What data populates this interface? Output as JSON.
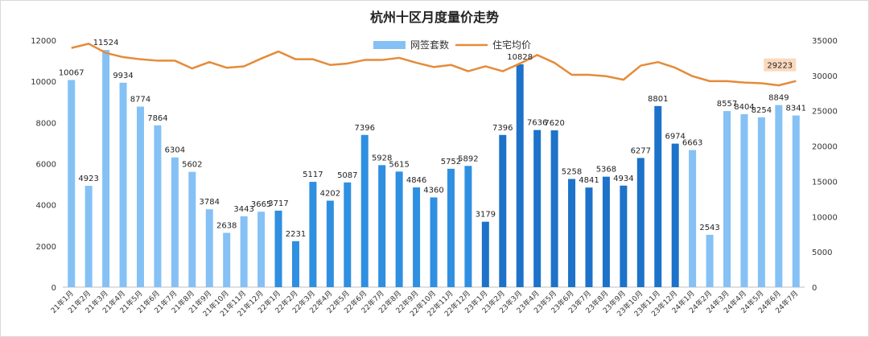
{
  "chart_data": {
    "type": "bar",
    "title": "杭州十区月度量价走势",
    "categories": [
      "21年1月",
      "21年2月",
      "21年3月",
      "21年4月",
      "21年5月",
      "21年6月",
      "21年7月",
      "21年8月",
      "21年9月",
      "21年10月",
      "21年11月",
      "21年12月",
      "22年1月",
      "22年2月",
      "22年3月",
      "22年4月",
      "22年5月",
      "22年6月",
      "22年7月",
      "22年8月",
      "22年9月",
      "22年10月",
      "22年11月",
      "22年12月",
      "23年1月",
      "23年2月",
      "23年3月",
      "23年4月",
      "23年5月",
      "23年6月",
      "23年7月",
      "23年8月",
      "23年9月",
      "23年10月",
      "23年11月",
      "23年12月",
      "24年1月",
      "24年2月",
      "24年3月",
      "24年4月",
      "24年5月",
      "24年6月",
      "24年7月"
    ],
    "series": [
      {
        "name": "网签套数",
        "kind": "bar",
        "axis": "left",
        "values": [
          10067,
          4923,
          11524,
          9934,
          8774,
          7864,
          6304,
          5602,
          3784,
          2638,
          3443,
          3665,
          3717,
          2231,
          5117,
          4202,
          5087,
          7396,
          5928,
          5615,
          4846,
          4360,
          5752,
          5892,
          3179,
          7396,
          10828,
          7636,
          7620,
          5258,
          4841,
          5368,
          4934,
          6277,
          8801,
          6974,
          6663,
          2543,
          8557,
          8404,
          8254,
          8849,
          8341
        ]
      },
      {
        "name": "住宅均价",
        "kind": "line",
        "axis": "right",
        "values": [
          33900,
          34500,
          33200,
          32600,
          32300,
          32100,
          32100,
          31000,
          31900,
          31100,
          31300,
          32400,
          33400,
          32300,
          32300,
          31500,
          31700,
          32200,
          32200,
          32500,
          31800,
          31200,
          31500,
          30600,
          31300,
          30600,
          31700,
          32900,
          31800,
          30100,
          30100,
          29900,
          29400,
          31400,
          31900,
          31100,
          29900,
          29200,
          29200,
          29000,
          28900,
          28600,
          29223
        ]
      }
    ],
    "y_left": {
      "min": 0,
      "max": 12000,
      "ticks": [
        0,
        2000,
        4000,
        6000,
        8000,
        10000,
        12000
      ]
    },
    "y_right": {
      "min": 0,
      "max": 35000,
      "ticks": [
        0,
        5000,
        10000,
        15000,
        20000,
        25000,
        30000,
        35000
      ]
    },
    "highlight_label": "29223",
    "legend_position": "top-center",
    "grid": false,
    "colors": {
      "bar_2021": "#85c1f5",
      "bar_2022": "#2f8fe0",
      "bar_2023": "#1d72c9",
      "bar_2024": "#85c1f5",
      "line": "#e58b3a",
      "highlight_box": "#fbd9bd"
    }
  }
}
